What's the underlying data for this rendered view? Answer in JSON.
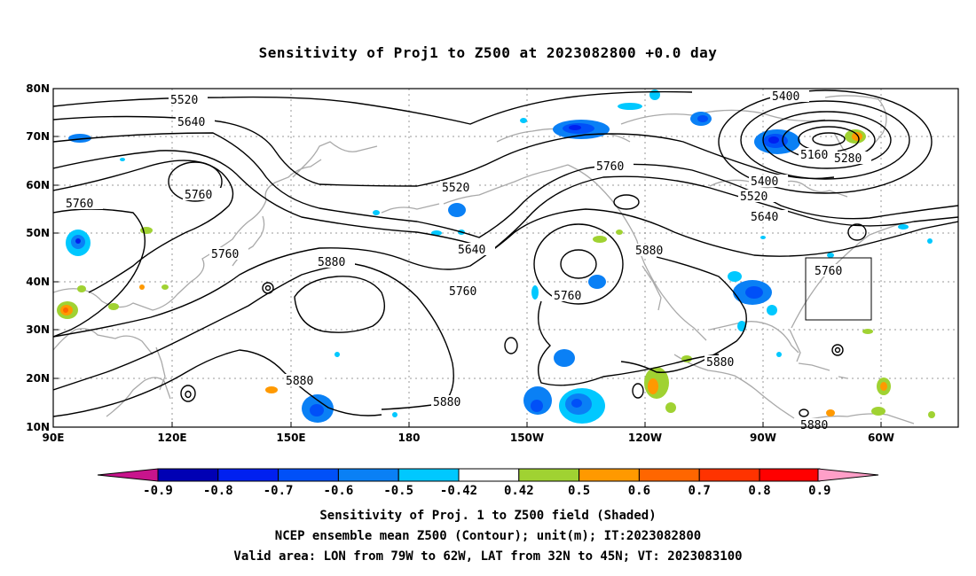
{
  "title": "Sensitivity of Proj1 to Z500 at 2023082800 +0.0 day",
  "map": {
    "lat_labels": [
      "80N",
      "70N",
      "60N",
      "50N",
      "40N",
      "30N",
      "20N",
      "10N"
    ],
    "lon_labels": [
      "90E",
      "120E",
      "150E",
      "180",
      "150W",
      "120W",
      "90W",
      "60W"
    ],
    "contour_labels": [
      "5520",
      "5640",
      "5400",
      "5160",
      "5280",
      "5760",
      "5760",
      "5520",
      "5760",
      "5760",
      "5880",
      "5640",
      "5400",
      "5520",
      "5640",
      "5760",
      "5880",
      "5760",
      "5760",
      "5880",
      "5880",
      "5880",
      "5880"
    ],
    "valid_box": "79W-62W, 32N-45N"
  },
  "colorbar": {
    "labels": [
      "-0.9",
      "-0.8",
      "-0.7",
      "-0.6",
      "-0.5",
      "-0.42",
      "0.42",
      "0.5",
      "0.6",
      "0.7",
      "0.8",
      "0.9"
    ],
    "colors": [
      "#0000b4",
      "#0020f0",
      "#0050f8",
      "#0a80f5",
      "#00c8ff",
      "#ffffff",
      "#a0d232",
      "#ff9900",
      "#ff6600",
      "#ff3300",
      "#ff0000"
    ],
    "low_end_color": "#c8148c",
    "high_end_color": "#ff9fc8"
  },
  "captions": [
    "Sensitivity of Proj. 1 to Z500 field (Shaded)",
    "NCEP ensemble mean Z500 (Contour); unit(m); IT:2023082800",
    "Valid area: LON from 79W to 62W, LAT from 32N to 45N; VT: 2023083100"
  ]
}
